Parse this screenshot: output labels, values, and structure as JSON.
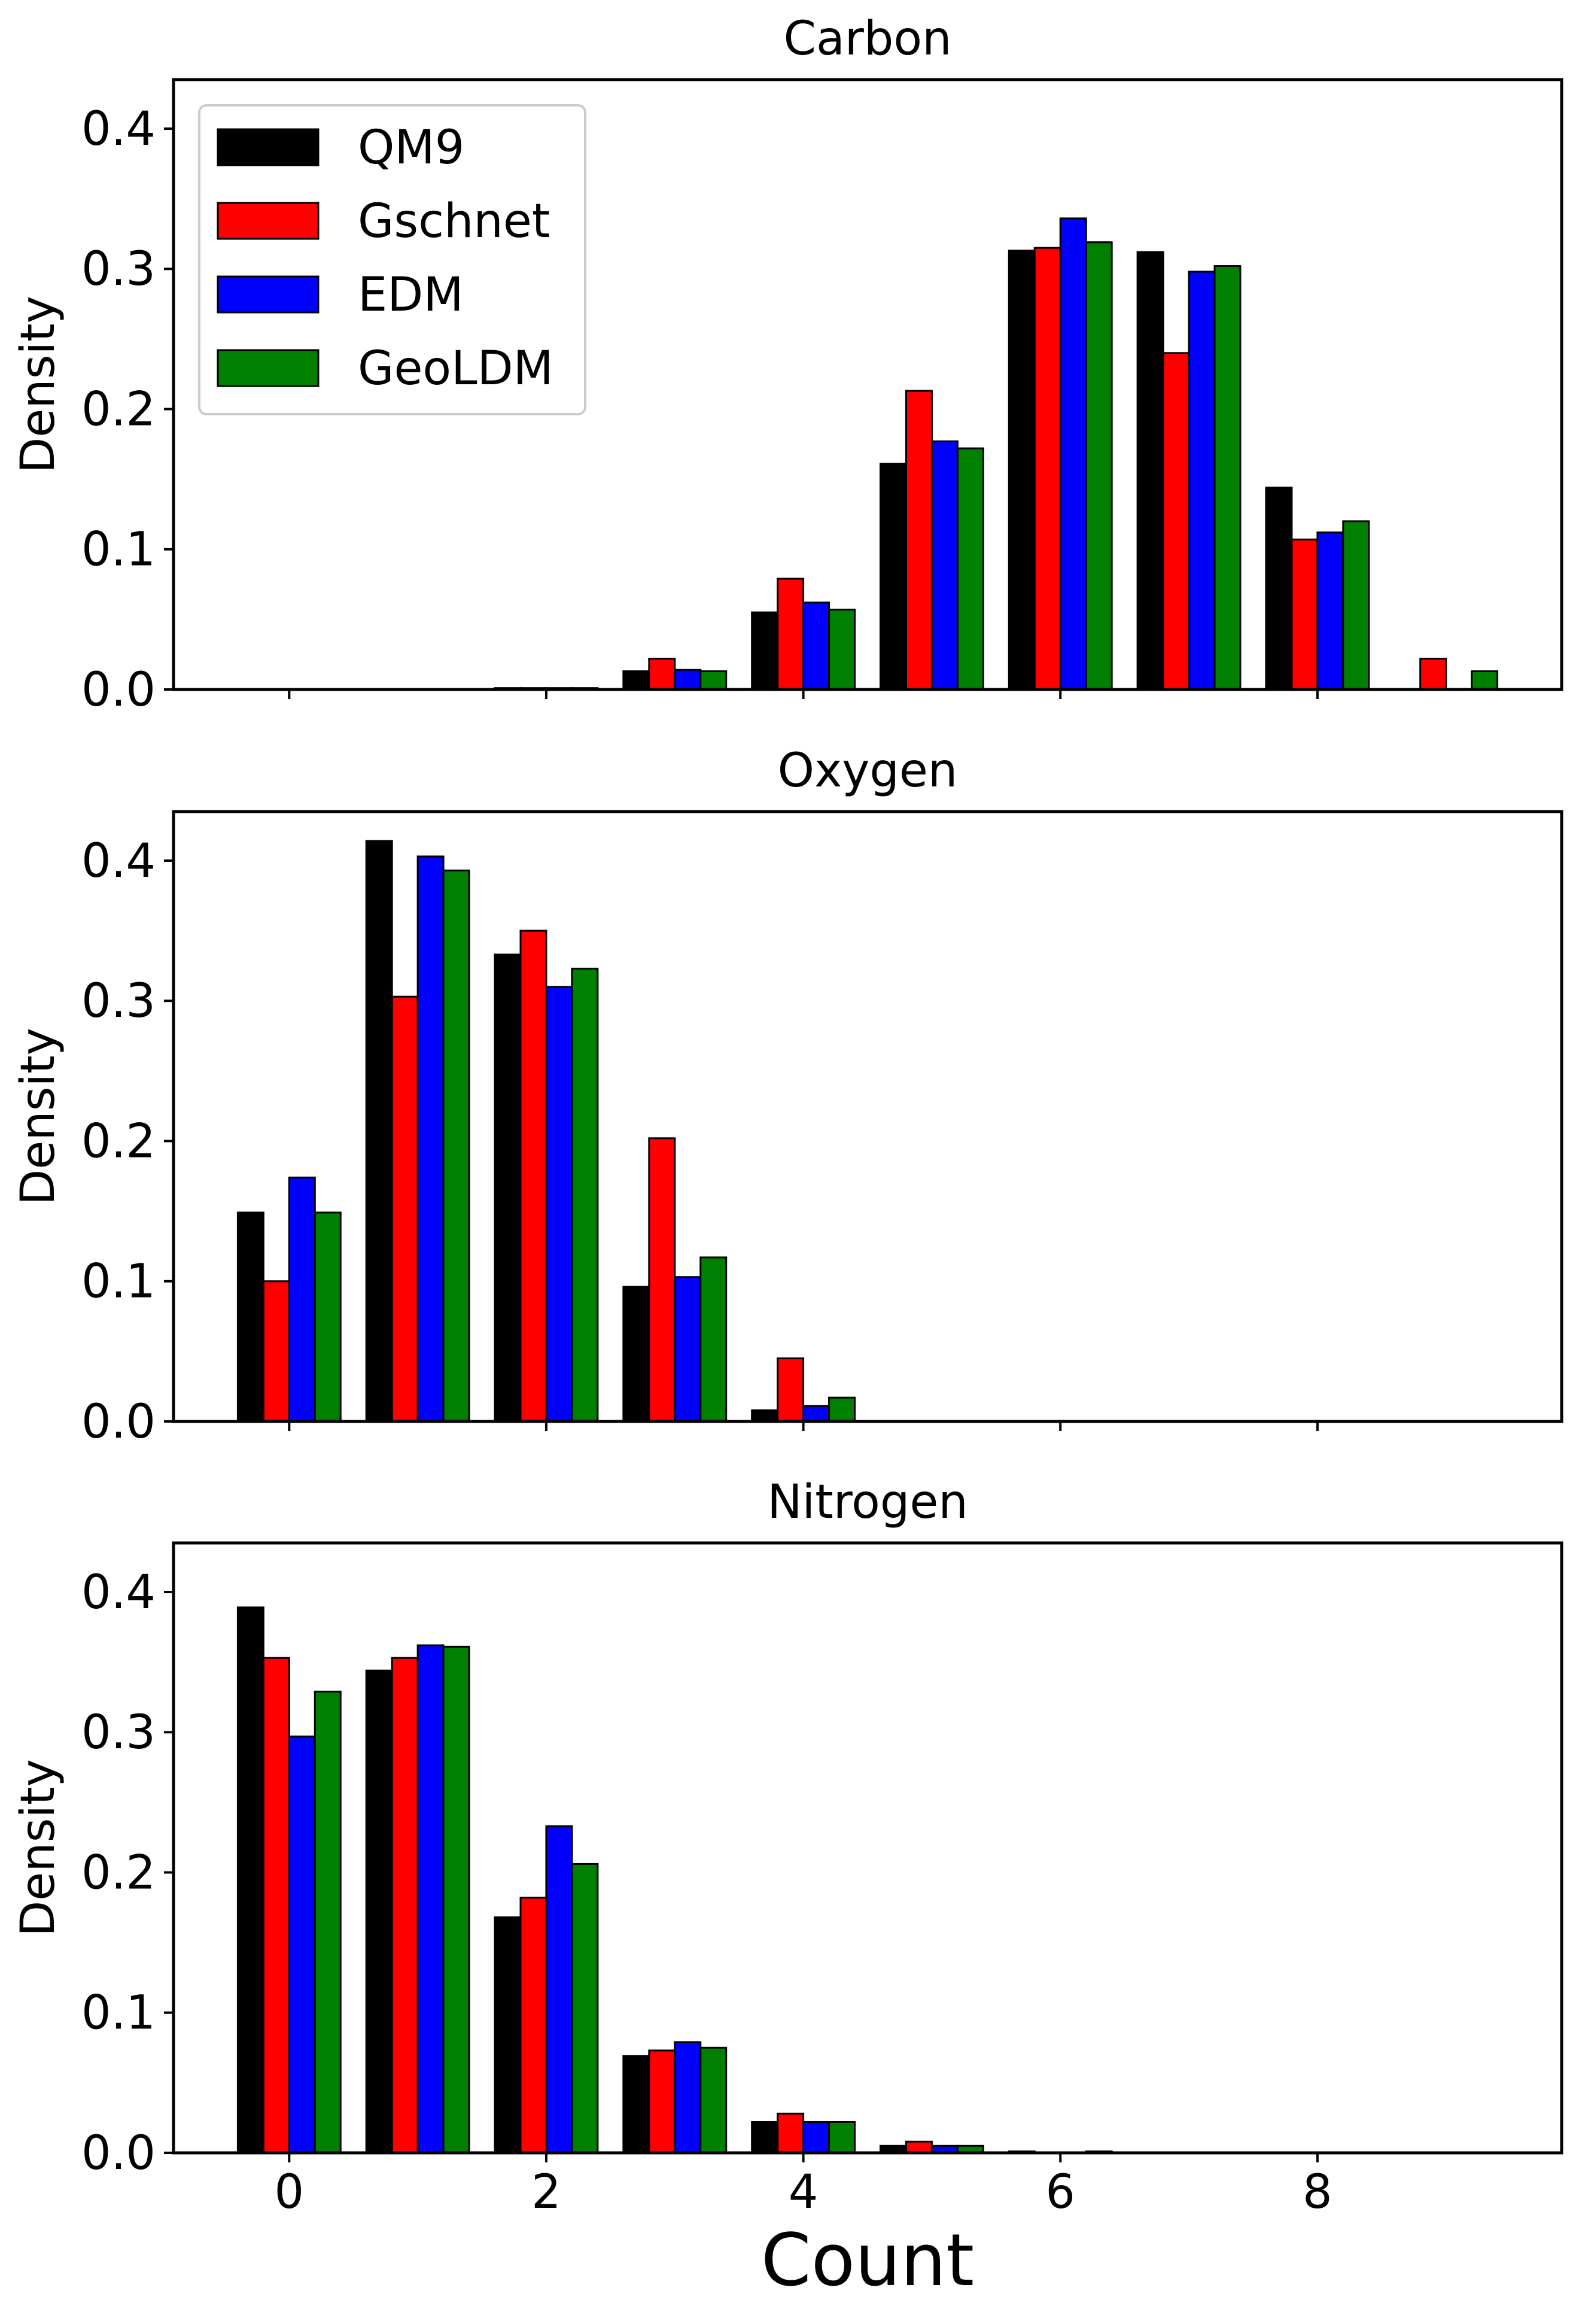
{
  "figure": {
    "xlabel": "Count",
    "ylabel": "Density",
    "legend": {
      "placement": "upper-left of first subplot",
      "entries": [
        "QM9",
        "Gschnet",
        "EDM",
        "GeoLDM"
      ]
    }
  },
  "chart_data": [
    {
      "type": "bar",
      "title": "Carbon",
      "xlabel": "",
      "ylabel": "Density",
      "ylim": [
        0,
        0.435
      ],
      "xlim": [
        -0.9,
        9.9
      ],
      "yticks": [
        "0.0",
        "0.1",
        "0.2",
        "0.3",
        "0.4"
      ],
      "xticks": [
        "0",
        "2",
        "4",
        "6",
        "8"
      ],
      "x_tick_labels_shown": false,
      "categories": [
        0,
        1,
        2,
        3,
        4,
        5,
        6,
        7,
        8,
        9
      ],
      "series": [
        {
          "name": "QM9",
          "color": "#000000",
          "values": [
            0,
            0,
            0.001,
            0.013,
            0.055,
            0.161,
            0.313,
            0.312,
            0.144,
            0.0
          ]
        },
        {
          "name": "Gschnet",
          "color": "#ff0000",
          "values": [
            0,
            0,
            0.001,
            0.022,
            0.079,
            0.213,
            0.315,
            0.24,
            0.107,
            0.022
          ]
        },
        {
          "name": "EDM",
          "color": "#0000ff",
          "values": [
            0,
            0,
            0.001,
            0.014,
            0.062,
            0.177,
            0.336,
            0.298,
            0.112,
            0.0
          ]
        },
        {
          "name": "GeoLDM",
          "color": "#008000",
          "values": [
            0,
            0,
            0.001,
            0.013,
            0.057,
            0.172,
            0.319,
            0.302,
            0.12,
            0.013
          ]
        }
      ]
    },
    {
      "type": "bar",
      "title": "Oxygen",
      "xlabel": "",
      "ylabel": "Density",
      "ylim": [
        0,
        0.435
      ],
      "xlim": [
        -0.9,
        9.9
      ],
      "yticks": [
        "0.0",
        "0.1",
        "0.2",
        "0.3",
        "0.4"
      ],
      "xticks": [
        "0",
        "2",
        "4",
        "6",
        "8"
      ],
      "x_tick_labels_shown": false,
      "categories": [
        0,
        1,
        2,
        3,
        4
      ],
      "series": [
        {
          "name": "QM9",
          "color": "#000000",
          "values": [
            0.149,
            0.414,
            0.333,
            0.096,
            0.008
          ]
        },
        {
          "name": "Gschnet",
          "color": "#ff0000",
          "values": [
            0.1,
            0.303,
            0.35,
            0.202,
            0.045
          ]
        },
        {
          "name": "EDM",
          "color": "#0000ff",
          "values": [
            0.174,
            0.403,
            0.31,
            0.103,
            0.011
          ]
        },
        {
          "name": "GeoLDM",
          "color": "#008000",
          "values": [
            0.149,
            0.393,
            0.323,
            0.117,
            0.017
          ]
        }
      ]
    },
    {
      "type": "bar",
      "title": "Nitrogen",
      "xlabel": "Count",
      "ylabel": "Density",
      "ylim": [
        0,
        0.435
      ],
      "xlim": [
        -0.9,
        9.9
      ],
      "yticks": [
        "0.0",
        "0.1",
        "0.2",
        "0.3",
        "0.4"
      ],
      "xticks": [
        "0",
        "2",
        "4",
        "6",
        "8"
      ],
      "x_tick_labels_shown": true,
      "categories": [
        0,
        1,
        2,
        3,
        4,
        5,
        6
      ],
      "series": [
        {
          "name": "QM9",
          "color": "#000000",
          "values": [
            0.389,
            0.344,
            0.168,
            0.069,
            0.022,
            0.005,
            0.001
          ]
        },
        {
          "name": "Gschnet",
          "color": "#ff0000",
          "values": [
            0.353,
            0.353,
            0.182,
            0.073,
            0.028,
            0.008,
            0.0
          ]
        },
        {
          "name": "EDM",
          "color": "#0000ff",
          "values": [
            0.297,
            0.362,
            0.233,
            0.079,
            0.022,
            0.005,
            0.0
          ]
        },
        {
          "name": "GeoLDM",
          "color": "#008000",
          "values": [
            0.329,
            0.361,
            0.206,
            0.075,
            0.022,
            0.005,
            0.001
          ]
        }
      ]
    }
  ]
}
